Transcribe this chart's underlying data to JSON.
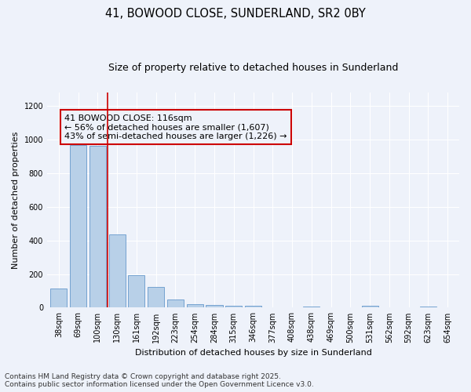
{
  "title_line1": "41, BOWOOD CLOSE, SUNDERLAND, SR2 0BY",
  "title_line2": "Size of property relative to detached houses in Sunderland",
  "xlabel": "Distribution of detached houses by size in Sunderland",
  "ylabel": "Number of detached properties",
  "categories": [
    "38sqm",
    "69sqm",
    "100sqm",
    "130sqm",
    "161sqm",
    "192sqm",
    "223sqm",
    "254sqm",
    "284sqm",
    "315sqm",
    "346sqm",
    "377sqm",
    "408sqm",
    "438sqm",
    "469sqm",
    "500sqm",
    "531sqm",
    "562sqm",
    "592sqm",
    "623sqm",
    "654sqm"
  ],
  "values": [
    115,
    965,
    962,
    435,
    193,
    123,
    48,
    22,
    17,
    12,
    9,
    0,
    0,
    7,
    0,
    0,
    9,
    0,
    0,
    8,
    0
  ],
  "bar_color": "#b8d0e8",
  "bar_edge_color": "#6699cc",
  "vline_x_index": 2,
  "vline_color": "#cc0000",
  "annotation_text": "41 BOWOOD CLOSE: 116sqm\n← 56% of detached houses are smaller (1,607)\n43% of semi-detached houses are larger (1,226) →",
  "annotation_box_color": "#cc0000",
  "ylim": [
    0,
    1280
  ],
  "yticks": [
    0,
    200,
    400,
    600,
    800,
    1000,
    1200
  ],
  "background_color": "#eef2fa",
  "grid_color": "#ffffff",
  "footer_line1": "Contains HM Land Registry data © Crown copyright and database right 2025.",
  "footer_line2": "Contains public sector information licensed under the Open Government Licence v3.0.",
  "title_fontsize": 10.5,
  "subtitle_fontsize": 9,
  "axis_label_fontsize": 8,
  "tick_fontsize": 7,
  "annotation_fontsize": 8,
  "footer_fontsize": 6.5
}
